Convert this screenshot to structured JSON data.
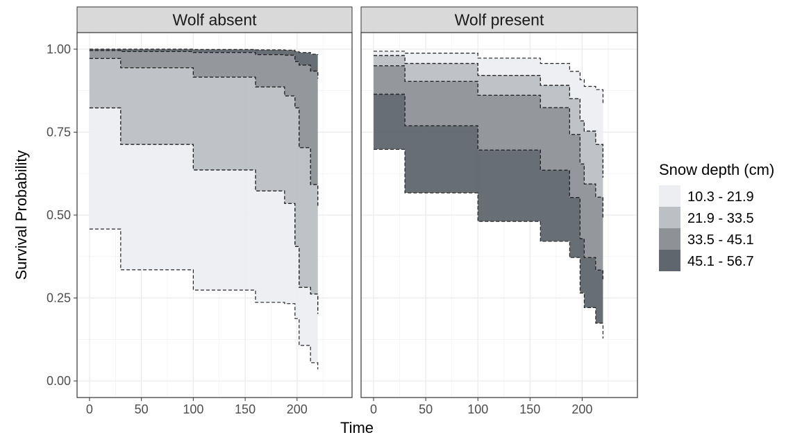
{
  "chart_data": {
    "type": "area",
    "title": "",
    "xlabel": "Time",
    "ylabel": "Survival Probability",
    "xlim": [
      -12,
      253
    ],
    "ylim": [
      -0.05,
      1.05
    ],
    "x_ticks": [
      0,
      50,
      100,
      150,
      200
    ],
    "y_ticks": [
      0.0,
      0.25,
      0.5,
      0.75,
      1.0
    ],
    "x_tick_labels": [
      "0",
      "50",
      "100",
      "150",
      "200"
    ],
    "y_tick_labels": [
      "0.00",
      "0.25",
      "0.50",
      "0.75",
      "1.00"
    ],
    "grid": true,
    "legend_position": "right",
    "legend": {
      "title": "Snow depth (cm)",
      "items": [
        {
          "label": "10.3 - 21.9",
          "color": "#eceef1"
        },
        {
          "label": "21.9 - 33.5",
          "color": "#bcbfc3"
        },
        {
          "label": "33.5 - 45.1",
          "color": "#8e9297"
        },
        {
          "label": "45.1 - 56.7",
          "color": "#5f666d"
        }
      ]
    },
    "panels": [
      {
        "label": "Wolf absent",
        "bands": [
          {
            "group": "10.3 - 21.9",
            "upper": {
              "x": [
                0,
                30,
                100,
                160,
                188,
                198,
                202,
                213,
                220
              ],
              "y": [
                0.823,
                0.713,
                0.636,
                0.573,
                0.535,
                0.405,
                0.282,
                0.262,
                0.202
              ]
            },
            "lower": {
              "x": [
                0,
                30,
                100,
                160,
                188,
                198,
                202,
                213,
                220
              ],
              "y": [
                0.458,
                0.335,
                0.274,
                0.237,
                0.233,
                0.188,
                0.107,
                0.055,
                0.035
              ]
            }
          },
          {
            "group": "21.9 - 33.5",
            "upper": {
              "x": [
                0,
                30,
                100,
                160,
                188,
                198,
                202,
                213,
                220
              ],
              "y": [
                0.972,
                0.944,
                0.916,
                0.886,
                0.859,
                0.823,
                0.703,
                0.592,
                0.525
              ]
            },
            "lower": {
              "x": [
                0,
                30,
                100,
                160,
                188,
                198,
                202,
                213,
                220
              ],
              "y": [
                0.823,
                0.713,
                0.636,
                0.573,
                0.535,
                0.405,
                0.282,
                0.262,
                0.202
              ]
            }
          },
          {
            "group": "33.5 - 45.1",
            "upper": {
              "x": [
                0,
                30,
                100,
                160,
                188,
                198,
                202,
                213,
                220
              ],
              "y": [
                0.996,
                0.993,
                0.99,
                0.984,
                0.982,
                0.963,
                0.952,
                0.934,
                0.912
              ]
            },
            "lower": {
              "x": [
                0,
                30,
                100,
                160,
                188,
                198,
                202,
                213,
                220
              ],
              "y": [
                0.972,
                0.944,
                0.916,
                0.886,
                0.859,
                0.823,
                0.703,
                0.592,
                0.525
              ]
            }
          },
          {
            "group": "45.1 - 56.7",
            "upper": {
              "x": [
                0,
                30,
                100,
                160,
                188,
                198,
                202,
                213,
                220
              ],
              "y": [
                1.0,
                1.0,
                0.999,
                0.998,
                0.997,
                0.993,
                0.99,
                0.985,
                0.983
              ]
            },
            "lower": {
              "x": [
                0,
                30,
                100,
                160,
                188,
                198,
                202,
                213,
                220
              ],
              "y": [
                0.996,
                0.993,
                0.99,
                0.984,
                0.982,
                0.963,
                0.952,
                0.934,
                0.912
              ]
            }
          }
        ]
      },
      {
        "label": "Wolf present",
        "bands": [
          {
            "group": "10.3 - 21.9",
            "upper": {
              "x": [
                0,
                30,
                100,
                160,
                188,
                198,
                202,
                213,
                220
              ],
              "y": [
                0.994,
                0.988,
                0.973,
                0.957,
                0.933,
                0.908,
                0.888,
                0.878,
                0.833
              ]
            },
            "lower": {
              "x": [
                0,
                30,
                100,
                160,
                188,
                198,
                202,
                213,
                220
              ],
              "y": [
                0.981,
                0.957,
                0.921,
                0.891,
                0.851,
                0.784,
                0.753,
                0.713,
                0.613
              ]
            }
          },
          {
            "group": "21.9 - 33.5",
            "upper": {
              "x": [
                0,
                30,
                100,
                160,
                188,
                198,
                202,
                213,
                220
              ],
              "y": [
                0.981,
                0.957,
                0.921,
                0.891,
                0.851,
                0.784,
                0.753,
                0.713,
                0.613
              ]
            },
            "lower": {
              "x": [
                0,
                30,
                100,
                160,
                188,
                198,
                202,
                213,
                220
              ],
              "y": [
                0.95,
                0.903,
                0.861,
                0.824,
                0.743,
                0.654,
                0.594,
                0.554,
                0.492
              ]
            }
          },
          {
            "group": "33.5 - 45.1",
            "upper": {
              "x": [
                0,
                30,
                100,
                160,
                188,
                198,
                202,
                213,
                220
              ],
              "y": [
                0.95,
                0.903,
                0.861,
                0.824,
                0.743,
                0.654,
                0.594,
                0.554,
                0.492
              ]
            },
            "lower": {
              "x": [
                0,
                30,
                100,
                160,
                188,
                198,
                202,
                213,
                220
              ],
              "y": [
                0.864,
                0.769,
                0.696,
                0.635,
                0.553,
                0.429,
                0.372,
                0.334,
                0.304
              ]
            }
          },
          {
            "group": "45.1 - 56.7",
            "upper": {
              "x": [
                0,
                30,
                100,
                160,
                188,
                198,
                202,
                213,
                220
              ],
              "y": [
                0.864,
                0.769,
                0.696,
                0.635,
                0.553,
                0.429,
                0.372,
                0.334,
                0.304
              ]
            },
            "lower": {
              "x": [
                0,
                30,
                100,
                160,
                188,
                198,
                202,
                213,
                220
              ],
              "y": [
                0.698,
                0.567,
                0.481,
                0.421,
                0.372,
                0.265,
                0.221,
                0.174,
                0.128
              ]
            }
          }
        ]
      }
    ]
  }
}
